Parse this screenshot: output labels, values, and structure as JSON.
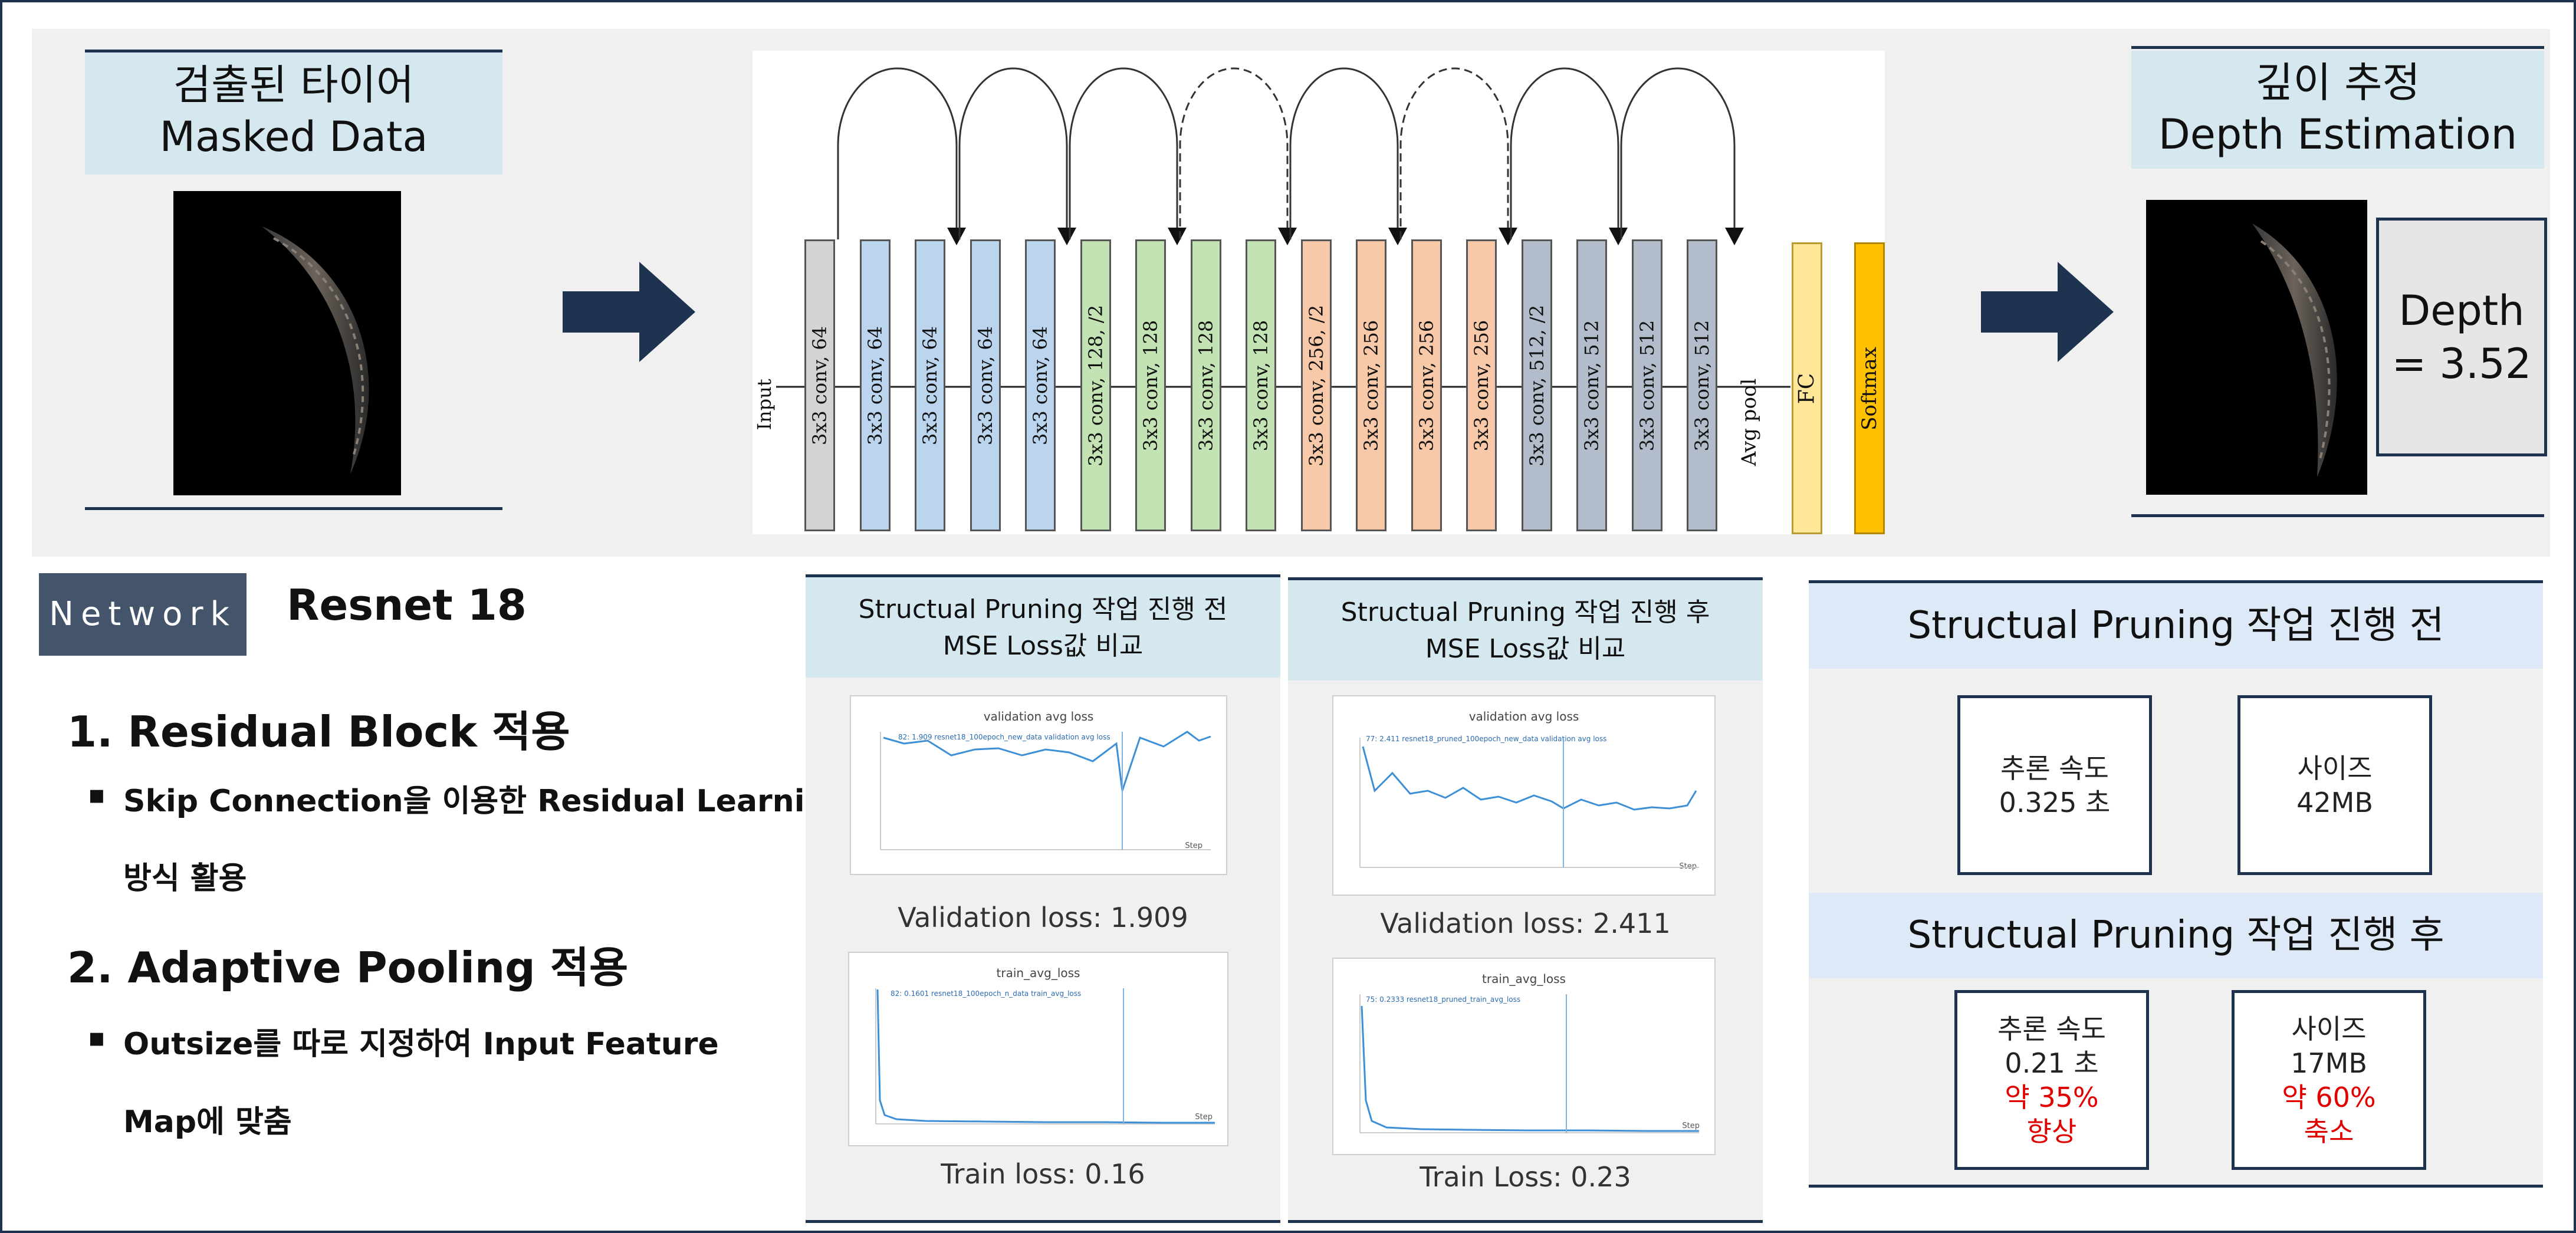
{
  "input_section": {
    "title_line1": "검출된 타이어",
    "title_line2": "Masked Data"
  },
  "output_section": {
    "title_line1": "깊이 추정",
    "title_line2": "Depth Estimation",
    "depth_line1": "Depth",
    "depth_line2": "= 3.52"
  },
  "architecture": {
    "input_label": "Input",
    "layers": [
      {
        "label": "3x3 conv, 64",
        "color": "#d3d3d3"
      },
      {
        "label": "3x3 conv, 64",
        "color": "#bcd5ee"
      },
      {
        "label": "3x3 conv, 64",
        "color": "#bcd5ee"
      },
      {
        "label": "3x3 conv, 64",
        "color": "#bcd5ee"
      },
      {
        "label": "3x3 conv, 64",
        "color": "#bcd5ee"
      },
      {
        "label": "3x3 conv, 128, /2",
        "color": "#c4e3b4"
      },
      {
        "label": "3x3 conv, 128",
        "color": "#c4e3b4"
      },
      {
        "label": "3x3 conv, 128",
        "color": "#c4e3b4"
      },
      {
        "label": "3x3 conv, 128",
        "color": "#c4e3b4"
      },
      {
        "label": "3x3 conv, 256, /2",
        "color": "#f7c9a8"
      },
      {
        "label": "3x3 conv, 256",
        "color": "#f7c9a8"
      },
      {
        "label": "3x3 conv, 256",
        "color": "#f7c9a8"
      },
      {
        "label": "3x3 conv, 256",
        "color": "#f7c9a8"
      },
      {
        "label": "3x3 conv, 512, /2",
        "color": "#b2bccb"
      },
      {
        "label": "3x3 conv, 512",
        "color": "#b2bccb"
      },
      {
        "label": "3x3 conv, 512",
        "color": "#b2bccb"
      },
      {
        "label": "3x3 conv, 512",
        "color": "#b2bccb"
      }
    ],
    "avg_pool_label": "Avg pool",
    "fc_label": "FC",
    "fc_color": "#ffe699",
    "softmax_label": "Softmax",
    "softmax_color": "#ffc000"
  },
  "network": {
    "badge": "Network",
    "name": "Resnet 18",
    "item1_title": "1. Residual Block 적용",
    "item1_bullet_line1": "Skip Connection을 이용한 Residual Learning",
    "item1_bullet_line2": "방식 활용",
    "item2_title": "2. Adaptive Pooling 적용",
    "item2_bullet_line1": "Outsize를 따로 지정하여 Input Feature",
    "item2_bullet_line2": "Map에 맞춤",
    "bullet": "▪"
  },
  "before_panel": {
    "title_line1": "Structual Pruning 작업 진행 전",
    "title_line2": "MSE Loss값 비교",
    "val_chart_title": "validation avg loss",
    "val_legend": "82: 1.909 resnet18_100epoch_new_data validation avg loss",
    "val_loss_label": "Validation loss: 1.909",
    "train_chart_title": "train_avg_loss",
    "train_legend": "82: 0.1601 resnet18_100epoch_n_data train_avg_loss",
    "train_loss_label": "Train loss: 0.16",
    "step_label": "Step"
  },
  "after_panel": {
    "title_line1": "Structual Pruning 작업 진행 후",
    "title_line2": "MSE Loss값 비교",
    "val_chart_title": "validation avg loss",
    "val_legend": "77: 2.411 resnet18_pruned_100epoch_new_data validation avg loss",
    "val_loss_label": "Validation loss: 2.411",
    "train_chart_title": "train_avg_loss",
    "train_legend": "75: 0.2333 resnet18_pruned_train_avg_loss",
    "train_loss_label": "Train Loss: 0.23",
    "step_label": "Step"
  },
  "summary": {
    "before_title": "Structual Pruning 작업 진행 전",
    "before_speed_line1": "추론 속도",
    "before_speed_line2": "0.325 초",
    "before_size_line1": "사이즈",
    "before_size_line2": "42MB",
    "after_title": "Structual Pruning 작업 진행 후",
    "after_speed_line1": "추론 속도",
    "after_speed_line2": "0.21 초",
    "after_speed_line3": "약 35%",
    "after_speed_line4": "향상",
    "after_size_line1": "사이즈",
    "after_size_line2": "17MB",
    "after_size_line3": "약 60%",
    "after_size_line4": "축소"
  },
  "colors": {
    "navy": "#1e3350",
    "header_fill": "#d6e8ef",
    "badge_fill": "#44546a",
    "accent_red": "#e00000"
  }
}
